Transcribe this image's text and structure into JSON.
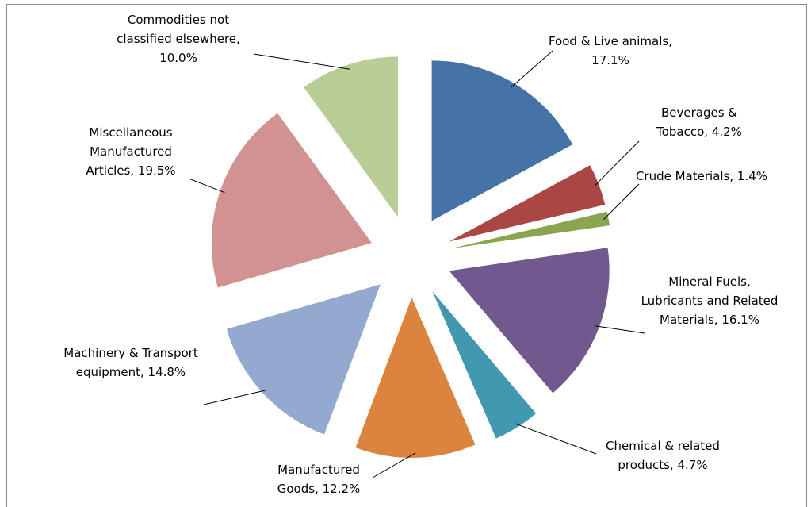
{
  "chart_data": {
    "type": "pie",
    "categories": [
      "Food & Live animals",
      "Beverages & Tobacco",
      "Crude Materials",
      "Mineral Fuels, Lubricants and Related Materials",
      "Chemical & related products",
      "Manufactured Goods",
      "Machinery & Transport equipment",
      "Miscellaneous Manufactured Articles",
      "Commodities not classified elsewhere"
    ],
    "values": [
      17.1,
      4.2,
      1.4,
      16.1,
      4.7,
      12.2,
      14.8,
      19.5,
      10.0
    ],
    "value_labels": [
      "17.1%",
      "4.2%",
      "1.4%",
      "16.1%",
      "4.7%",
      "12.2%",
      "14.8%",
      "19.5%",
      "10.0%"
    ],
    "colors": [
      "#4572a7",
      "#aa4643",
      "#89a54e",
      "#71588f",
      "#4198af",
      "#db843d",
      "#93a9cf",
      "#d19392",
      "#b9cd96"
    ],
    "exploded": true
  }
}
